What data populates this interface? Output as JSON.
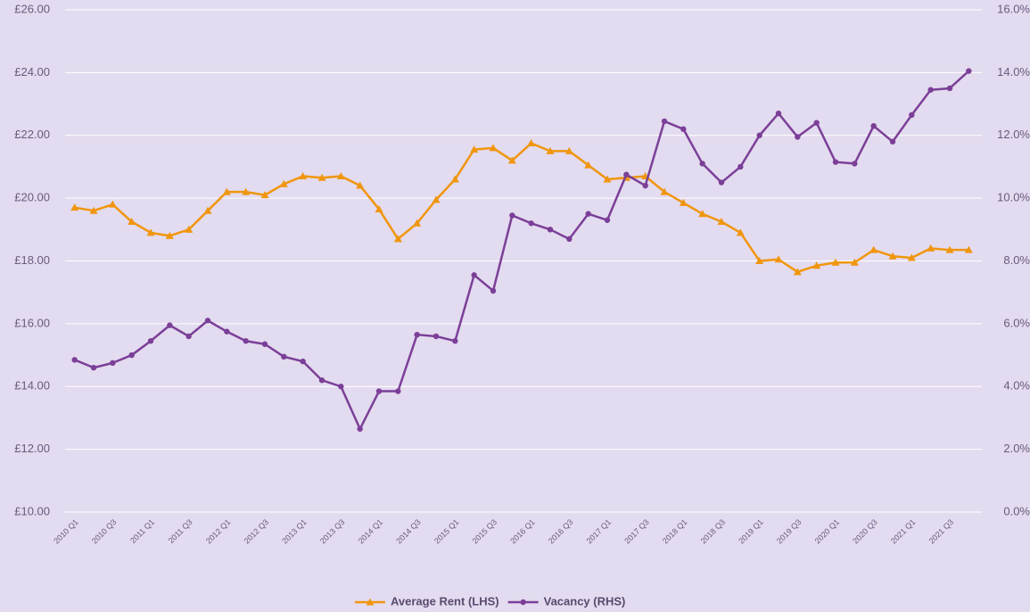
{
  "chart_data": {
    "type": "line",
    "categories": [
      "2010 Q1",
      null,
      "2010 Q3",
      null,
      "2011 Q1",
      null,
      "2011 Q3",
      null,
      "2012 Q1",
      null,
      "2012 Q3",
      null,
      "2013 Q1",
      null,
      "2013 Q3",
      null,
      "2014 Q1",
      null,
      "2014 Q3",
      null,
      "2015 Q1",
      null,
      "2015 Q3",
      null,
      "2016 Q1",
      null,
      "2016 Q3",
      null,
      "2017 Q1",
      null,
      "2017 Q3",
      null,
      "2018 Q1",
      null,
      "2018 Q3",
      null,
      "2019 Q1",
      null,
      "2019 Q3",
      null,
      "2020 Q1",
      null,
      "2020 Q3",
      null,
      "2021 Q1",
      null,
      "2021 Q3",
      null
    ],
    "series": [
      {
        "name": "Average Rent (LHS)",
        "color": "#f0960e",
        "marker": "triangle",
        "values": [
          19.7,
          19.6,
          19.8,
          19.25,
          18.9,
          18.8,
          19.0,
          19.6,
          20.2,
          20.2,
          20.1,
          20.45,
          20.7,
          20.65,
          20.7,
          20.4,
          19.65,
          18.7,
          19.2,
          19.95,
          20.6,
          21.55,
          21.6,
          21.2,
          21.75,
          21.5,
          21.5,
          21.05,
          20.6,
          20.65,
          20.7,
          20.2,
          19.85,
          19.5,
          19.25,
          18.9,
          18.0,
          18.05,
          17.65,
          17.85,
          17.95,
          17.95,
          18.35,
          18.15,
          18.1,
          18.4,
          18.35,
          18.35
        ]
      },
      {
        "name": "Vacancy (RHS)",
        "color": "#7b3f98",
        "marker": "circle",
        "axis": "y2",
        "values": [
          4.85,
          4.6,
          4.75,
          5.0,
          5.45,
          5.95,
          5.6,
          6.1,
          5.75,
          5.45,
          5.35,
          4.95,
          4.8,
          4.2,
          4.0,
          2.65,
          3.85,
          3.85,
          5.65,
          5.6,
          5.45,
          7.55,
          7.05,
          9.45,
          9.2,
          9.0,
          8.7,
          9.5,
          9.3,
          10.75,
          10.4,
          12.45,
          12.2,
          11.1,
          10.5,
          11.0,
          12.0,
          12.7,
          11.95,
          12.4,
          11.15,
          11.1,
          12.3,
          11.8,
          12.65,
          13.45,
          13.5,
          14.05
        ]
      }
    ],
    "ylim": [
      10,
      26
    ],
    "yticks": [
      {
        "value": 10,
        "label": "£10.00"
      },
      {
        "value": 12,
        "label": "£12.00"
      },
      {
        "value": 14,
        "label": "£14.00"
      },
      {
        "value": 16,
        "label": "£16.00"
      },
      {
        "value": 18,
        "label": "£18.00"
      },
      {
        "value": 20,
        "label": "£20.00"
      },
      {
        "value": 22,
        "label": "£22.00"
      },
      {
        "value": 24,
        "label": "£24.00"
      },
      {
        "value": 26,
        "label": "£26.00"
      }
    ],
    "y2lim": [
      0,
      16
    ],
    "y2ticks": [
      {
        "value": 0,
        "label": "0.0%"
      },
      {
        "value": 2,
        "label": "2.0%"
      },
      {
        "value": 4,
        "label": "4.0%"
      },
      {
        "value": 6,
        "label": "6.0%"
      },
      {
        "value": 8,
        "label": "8.0%"
      },
      {
        "value": 10,
        "label": "10.0%"
      },
      {
        "value": 12,
        "label": "12.0%"
      },
      {
        "value": 14,
        "label": "14.0%"
      },
      {
        "value": 16,
        "label": "16.0%"
      }
    ],
    "grid": true,
    "legend": "bottom"
  }
}
